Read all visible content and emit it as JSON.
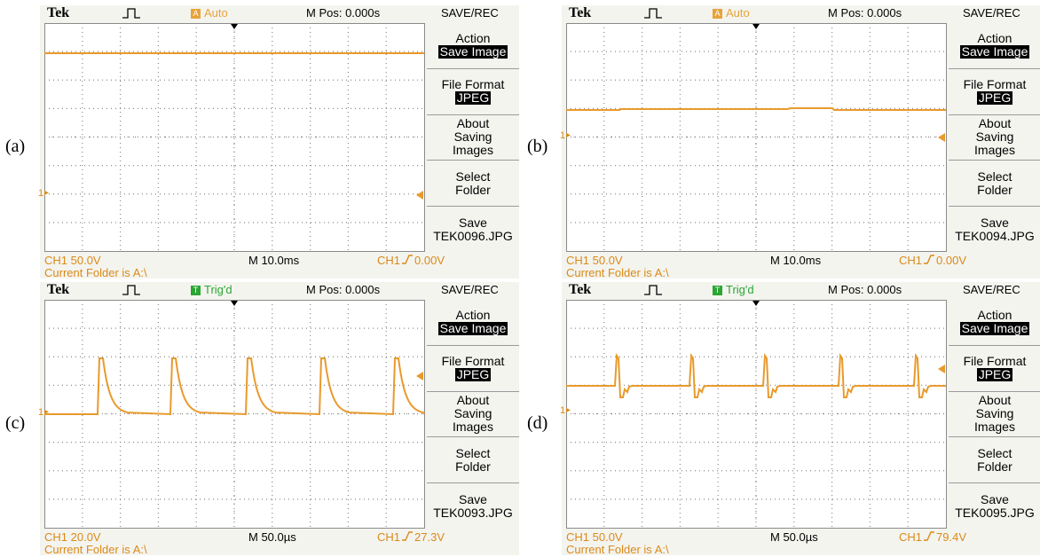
{
  "panels": [
    {
      "label": "(a)",
      "brand": "Tek",
      "status_icon": "A",
      "status": "Auto",
      "status_color": "#e8a33a",
      "mpos": "M Pos: 0.000s",
      "menu_title": "SAVE/REC",
      "menu": [
        {
          "label": "Action",
          "value": "Save Image",
          "highlighted": true
        },
        {
          "label": "File Format",
          "value": "JPEG",
          "highlighted": true
        },
        {
          "label": "About Saving Images"
        },
        {
          "label": "Select Folder"
        },
        {
          "label": "Save",
          "value": "TEK0096.JPG"
        }
      ],
      "ch_marker": "1",
      "channel": "CH1 50.0V",
      "timebase": "M 10.0ms",
      "trig_channel": "CH1",
      "trig_level": "0.00V",
      "folder": "Current Folder is A:\\"
    },
    {
      "label": "(b)",
      "brand": "Tek",
      "status_icon": "A",
      "status": "Auto",
      "status_color": "#e8a33a",
      "mpos": "M Pos: 0.000s",
      "menu_title": "SAVE/REC",
      "menu": [
        {
          "label": "Action",
          "value": "Save Image",
          "highlighted": true
        },
        {
          "label": "File Format",
          "value": "JPEG",
          "highlighted": true
        },
        {
          "label": "About Saving Images"
        },
        {
          "label": "Select Folder"
        },
        {
          "label": "Save",
          "value": "TEK0094.JPG"
        }
      ],
      "ch_marker": "1",
      "channel": "CH1 50.0V",
      "timebase": "M 10.0ms",
      "trig_channel": "CH1",
      "trig_level": "0.00V",
      "folder": "Current Folder is A:\\"
    },
    {
      "label": "(c)",
      "brand": "Tek",
      "status_icon": "T",
      "status": "Trig'd",
      "status_color": "#2aa632",
      "mpos": "M Pos: 0.000s",
      "menu_title": "SAVE/REC",
      "menu": [
        {
          "label": "Action",
          "value": "Save Image",
          "highlighted": true
        },
        {
          "label": "File Format",
          "value": "JPEG",
          "highlighted": true
        },
        {
          "label": "About Saving Images"
        },
        {
          "label": "Select Folder"
        },
        {
          "label": "Save",
          "value": "TEK0093.JPG"
        }
      ],
      "ch_marker": "1",
      "channel": "CH1 20.0V",
      "timebase": "M 50.0µs",
      "trig_channel": "CH1",
      "trig_level": "27.3V",
      "folder": "Current Folder is A:\\"
    },
    {
      "label": "(d)",
      "brand": "Tek",
      "status_icon": "T",
      "status": "Trig'd",
      "status_color": "#2aa632",
      "mpos": "M Pos: 0.000s",
      "menu_title": "SAVE/REC",
      "menu": [
        {
          "label": "Action",
          "value": "Save Image",
          "highlighted": true
        },
        {
          "label": "File Format",
          "value": "JPEG",
          "highlighted": true
        },
        {
          "label": "About Saving Images"
        },
        {
          "label": "Select Folder"
        },
        {
          "label": "Save",
          "value": "TEK0095.JPG"
        }
      ],
      "ch_marker": "1",
      "channel": "CH1 50.0V",
      "timebase": "M 50.0µs",
      "trig_channel": "CH1",
      "trig_level": "79.4V",
      "folder": "Current Folder is A:\\"
    }
  ]
}
